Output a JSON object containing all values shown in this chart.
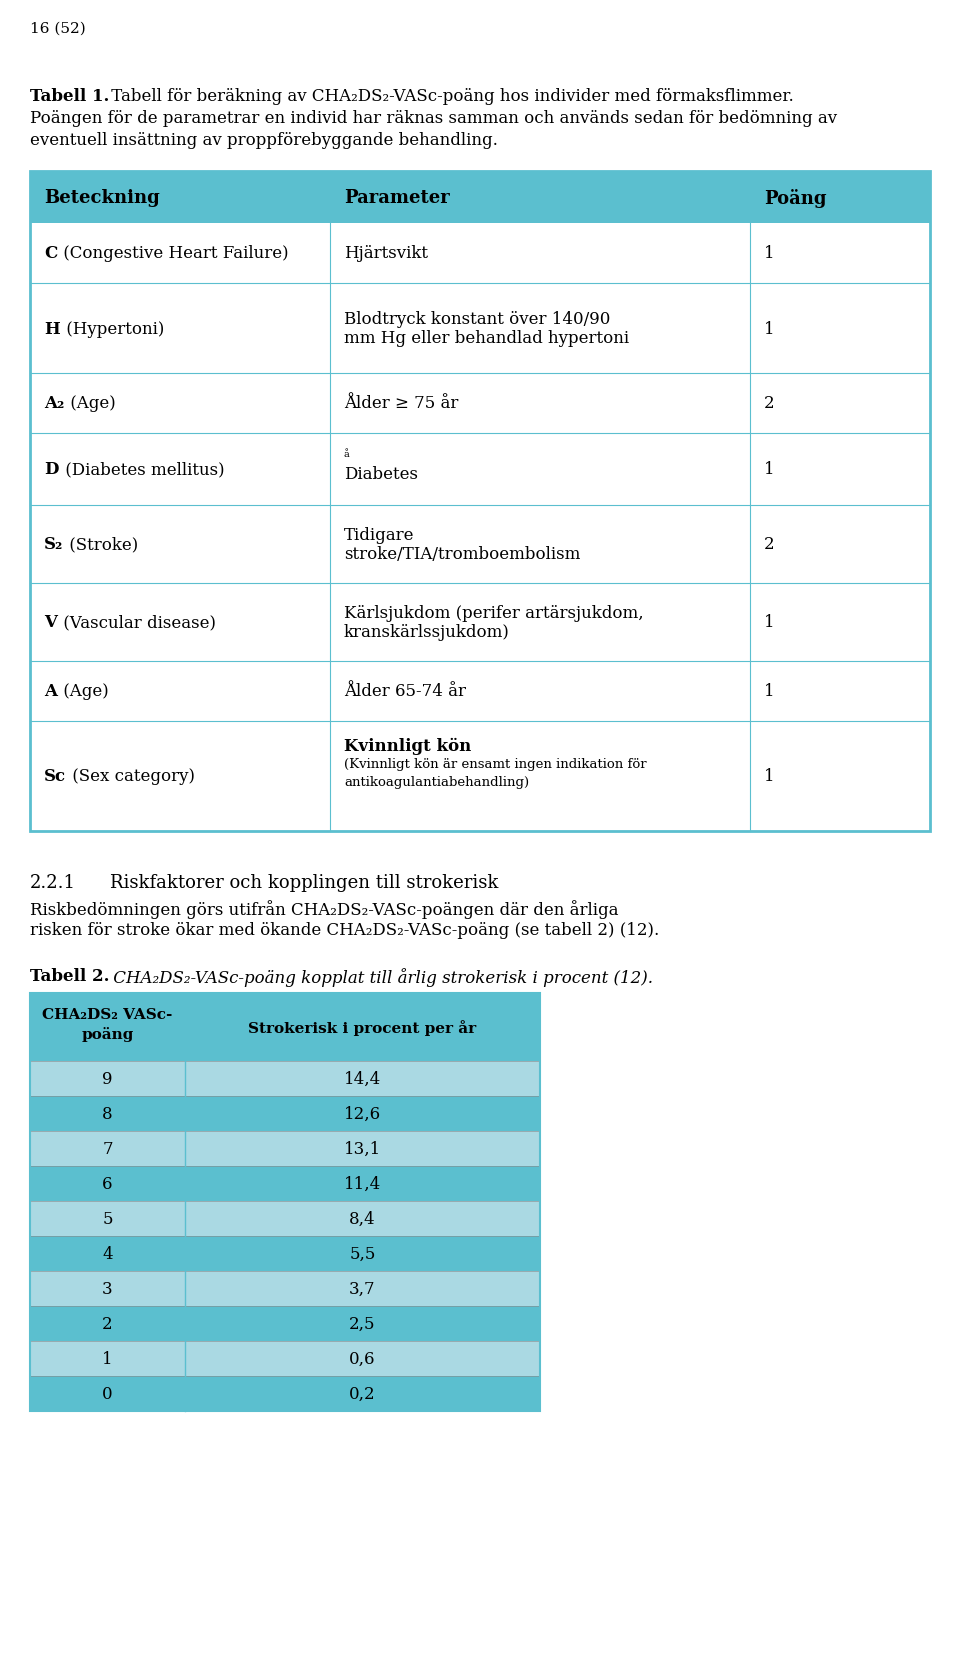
{
  "page_num": "16 (52)",
  "tabell1_bold": "Tabell 1.",
  "tabell1_text": " Tabell för beräkning av CHA₂DS₂-VASc-poäng hos individer med förmaksflimmer.",
  "tabell1_body_line1": "Poängen för de parametrar en individ har räknas samman och används sedan för bedömning av",
  "tabell1_body_line2": "eventuell insättning av proppförebyggande behandling.",
  "header_bg": "#5bbfcf",
  "header_text_color": "#000000",
  "table_border_color": "#5bbfcf",
  "table_bg": "#ffffff",
  "headers": [
    "Beteckning",
    "Parameter",
    "Poäng"
  ],
  "rows": [
    {
      "col1": "C (Congestive Heart Failure)",
      "col1_bold": "C",
      "col1_rest": " (Congestive Heart Failure)",
      "col2_lines": [
        "Hjärtsvikt"
      ],
      "col2_bold_first": false,
      "col3": "1"
    },
    {
      "col1": "H (Hypertoni)",
      "col1_bold": "H",
      "col1_rest": " (Hypertoni)",
      "col2_lines": [
        "Blodtryck konstant över 140/90",
        "mm Hg eller behandlad hypertoni"
      ],
      "col2_bold_first": false,
      "col3": "1"
    },
    {
      "col1": "A₂ (Age)",
      "col1_bold": "A₂",
      "col1_rest": " (Age)",
      "col2_lines": [
        "Ålder ≥ 75 år"
      ],
      "col2_bold_first": false,
      "col3": "2"
    },
    {
      "col1": "D (Diabetes mellitus)",
      "col1_bold": "D",
      "col1_rest": " (Diabetes mellitus)",
      "col2_lines": [
        "å",
        "Diabetes"
      ],
      "col2_special": true,
      "col2_bold_first": false,
      "col3": "1"
    },
    {
      "col1": "S₂ (Stroke)",
      "col1_bold": "S₂",
      "col1_rest": " (Stroke)",
      "col2_lines": [
        "Tidigare",
        "stroke/TIA/tromboembolism"
      ],
      "col2_bold_first": false,
      "col3": "2"
    },
    {
      "col1": "V (Vascular disease)",
      "col1_bold": "V",
      "col1_rest": " (Vascular disease)",
      "col2_lines": [
        "Kärlsjukdom (perifer artärsjukdom,",
        "kranskärlssjukdom)"
      ],
      "col2_bold_first": false,
      "col3": "1"
    },
    {
      "col1": "A (Age)",
      "col1_bold": "A",
      "col1_rest": " (Age)",
      "col2_lines": [
        "Ålder 65-74 år"
      ],
      "col2_bold_first": false,
      "col3": "1"
    },
    {
      "col1": "Sc (Sex category)",
      "col1_bold": "Sc",
      "col1_rest": " (Sex category)",
      "col2_lines": [
        "Kvinnligt kön",
        "(Kvinnligt kön är ensamt ingen indikation för",
        "antikoagulantiabehandling)"
      ],
      "col2_bold_first": true,
      "col3": "1"
    }
  ],
  "section221_title": "2.2.1\t     Riskfaktorer och kopplingen till strokerisk",
  "section221_body1": "Riskbedömningen görs utifrån CHA₂DS₂-VASc-poängen där den årliga",
  "section221_body2": "risken för stroke ökar med ökande CHA₂DS₂-VASc-poäng (se tabell 2) (12).",
  "tabell2_bold": "Tabell 2.",
  "tabell2_italic": " CHA₂DS₂-VASc-poäng kopplat till årlig strokerisk i procent (12).",
  "table2_col1_header_line1": "CHA₂DS₂ VASc-",
  "table2_col1_header_line2": "poäng",
  "table2_col2_header": "Strokerisk i procent per år",
  "table2_header_bg": "#5bbfcf",
  "table2_rows": [
    {
      "val": "9",
      "risk": "14,4",
      "bg": "#aad9e3"
    },
    {
      "val": "8",
      "risk": "12,6",
      "bg": "#5bbfcf"
    },
    {
      "val": "7",
      "risk": "13,1",
      "bg": "#aad9e3"
    },
    {
      "val": "6",
      "risk": "11,4",
      "bg": "#5bbfcf"
    },
    {
      "val": "5",
      "risk": "8,4",
      "bg": "#aad9e3"
    },
    {
      "val": "4",
      "risk": "5,5",
      "bg": "#5bbfcf"
    },
    {
      "val": "3",
      "risk": "3,7",
      "bg": "#aad9e3"
    },
    {
      "val": "2",
      "risk": "2,5",
      "bg": "#5bbfcf"
    },
    {
      "val": "1",
      "risk": "0,6",
      "bg": "#aad9e3"
    },
    {
      "val": "0",
      "risk": "0,2",
      "bg": "#5bbfcf"
    }
  ]
}
